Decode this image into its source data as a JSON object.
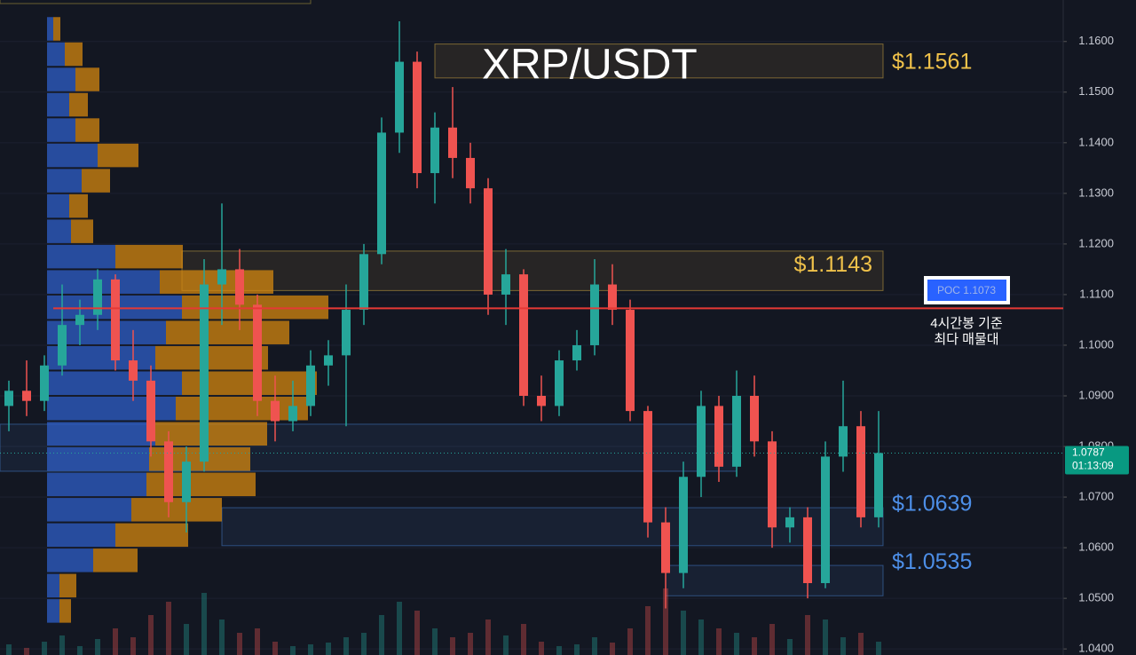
{
  "chart_data": {
    "type": "candlestick",
    "title": "XRP/USDT",
    "open": [
      1.088,
      1.091,
      1.089,
      1.096,
      1.104,
      1.106,
      1.113,
      1.097,
      1.093,
      1.081,
      1.069,
      1.077,
      1.112,
      1.115,
      1.108,
      1.089,
      1.085,
      1.088,
      1.096,
      1.098,
      1.107,
      1.118,
      1.142,
      1.156,
      1.134,
      1.143,
      1.137,
      1.131,
      1.11,
      1.114,
      1.09,
      1.088,
      1.097,
      1.1,
      1.112,
      1.107,
      1.087,
      1.065,
      1.055,
      1.074,
      1.088,
      1.076,
      1.09,
      1.081,
      1.064,
      1.066,
      1.053,
      1.078,
      1.084,
      1.066
    ],
    "high": [
      1.093,
      1.097,
      1.098,
      1.112,
      1.109,
      1.115,
      1.114,
      1.103,
      1.096,
      1.083,
      1.08,
      1.117,
      1.128,
      1.119,
      1.11,
      1.094,
      1.093,
      1.099,
      1.101,
      1.112,
      1.12,
      1.145,
      1.164,
      1.158,
      1.146,
      1.151,
      1.14,
      1.133,
      1.119,
      1.115,
      1.094,
      1.099,
      1.103,
      1.117,
      1.116,
      1.109,
      1.088,
      1.068,
      1.077,
      1.091,
      1.09,
      1.095,
      1.094,
      1.083,
      1.068,
      1.068,
      1.081,
      1.093,
      1.087,
      1.087
    ],
    "low": [
      1.083,
      1.086,
      1.087,
      1.094,
      1.1,
      1.103,
      1.095,
      1.089,
      1.078,
      1.066,
      1.063,
      1.075,
      1.104,
      1.103,
      1.086,
      1.081,
      1.083,
      1.086,
      1.092,
      1.084,
      1.104,
      1.116,
      1.138,
      1.131,
      1.128,
      1.133,
      1.128,
      1.106,
      1.104,
      1.088,
      1.085,
      1.086,
      1.095,
      1.098,
      1.104,
      1.085,
      1.062,
      1.048,
      1.052,
      1.07,
      1.073,
      1.074,
      1.078,
      1.06,
      1.061,
      1.05,
      1.052,
      1.075,
      1.064,
      1.064
    ],
    "close": [
      1.091,
      1.089,
      1.096,
      1.104,
      1.106,
      1.113,
      1.097,
      1.093,
      1.081,
      1.069,
      1.077,
      1.112,
      1.115,
      1.108,
      1.089,
      1.085,
      1.088,
      1.096,
      1.098,
      1.107,
      1.118,
      1.142,
      1.156,
      1.134,
      1.143,
      1.137,
      1.131,
      1.11,
      1.114,
      1.09,
      1.088,
      1.097,
      1.1,
      1.112,
      1.107,
      1.087,
      1.065,
      1.055,
      1.074,
      1.088,
      1.076,
      1.09,
      1.081,
      1.064,
      1.066,
      1.053,
      1.078,
      1.084,
      1.066,
      1.0787
    ],
    "volume": [
      12,
      8,
      15,
      22,
      10,
      18,
      30,
      20,
      45,
      60,
      35,
      70,
      40,
      25,
      30,
      15,
      10,
      12,
      14,
      20,
      25,
      45,
      60,
      50,
      30,
      20,
      25,
      40,
      22,
      35,
      15,
      10,
      12,
      20,
      14,
      30,
      55,
      75,
      50,
      40,
      30,
      25,
      20,
      35,
      18,
      45,
      40,
      20,
      25,
      15
    ],
    "up_color": "#26a69a",
    "down_color": "#ef5350",
    "ylim": [
      1.0388,
      1.1682
    ],
    "yticks": [
      {
        "value": 1.04,
        "label": "1.0400"
      },
      {
        "value": 1.05,
        "label": "1.0500"
      },
      {
        "value": 1.06,
        "label": "1.0600"
      },
      {
        "value": 1.07,
        "label": "1.0700"
      },
      {
        "value": 1.08,
        "label": "1.0800"
      },
      {
        "value": 1.09,
        "label": "1.0900"
      },
      {
        "value": 1.1,
        "label": "1.1000"
      },
      {
        "value": 1.11,
        "label": "1.1100"
      },
      {
        "value": 1.12,
        "label": "1.1200"
      },
      {
        "value": 1.13,
        "label": "1.1300"
      },
      {
        "value": 1.14,
        "label": "1.1400"
      },
      {
        "value": 1.15,
        "label": "1.1500"
      },
      {
        "value": 1.16,
        "label": "1.1600"
      }
    ],
    "volume_profile": {
      "bins": [
        1.045,
        1.05,
        1.055,
        1.06,
        1.065,
        1.07,
        1.075,
        1.08,
        1.085,
        1.09,
        1.095,
        1.1,
        1.105,
        1.11,
        1.115,
        1.12,
        1.125,
        1.13,
        1.135,
        1.14,
        1.145,
        1.15,
        1.155,
        1.16,
        1.165
      ],
      "buy": [
        14,
        14,
        52,
        77,
        95,
        112,
        115,
        122,
        145,
        152,
        122,
        134,
        152,
        127,
        77,
        27,
        25,
        39,
        57,
        32,
        25,
        32,
        20,
        7
      ],
      "sell": [
        13,
        19,
        50,
        82,
        102,
        123,
        114,
        126,
        149,
        152,
        127,
        139,
        165,
        128,
        76,
        25,
        21,
        32,
        46,
        27,
        21,
        27,
        20,
        8
      ],
      "buy_color": "#2f5fc8",
      "sell_color": "#d4870f"
    },
    "zones": [
      {
        "label": "$1.1561",
        "value": 1.1561,
        "high": 1.1595,
        "low": 1.1528,
        "color": "#f0c24a"
      },
      {
        "label": "$1.1143",
        "value": 1.1143,
        "high": 1.1186,
        "low": 1.1108,
        "color": "#f0c24a"
      },
      {
        "high": 1.0844,
        "low": 1.0751,
        "color": "#4d8fe8"
      },
      {
        "label": "$1.0639",
        "value": 1.0639,
        "high": 1.0679,
        "low": 1.0604,
        "color": "#4d8fe8"
      },
      {
        "label": "$1.0535",
        "value": 1.0535,
        "high": 1.0565,
        "low": 1.0505,
        "color": "#4d8fe8"
      }
    ],
    "poc": {
      "value": 1.1073,
      "label": "POC  1.1073",
      "color": "#e53935"
    },
    "poc_note": [
      "4시간봉 기준",
      "최다 매물대"
    ],
    "last_price": 1.0787,
    "countdown": "01:13:09"
  }
}
